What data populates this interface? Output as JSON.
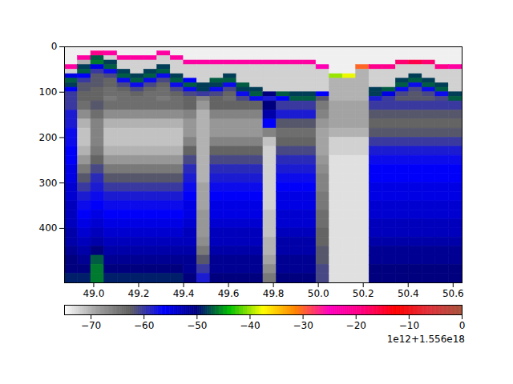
{
  "chart_data": {
    "type": "heatmap",
    "xlim": [
      48.87,
      50.64
    ],
    "ylim": [
      520,
      0
    ],
    "xticks": [
      {
        "value": 49.0,
        "label": "49.0"
      },
      {
        "value": 49.2,
        "label": "49.2"
      },
      {
        "value": 49.4,
        "label": "49.4"
      },
      {
        "value": 49.6,
        "label": "49.6"
      },
      {
        "value": 49.8,
        "label": "49.8"
      },
      {
        "value": 50.0,
        "label": "50.0"
      },
      {
        "value": 50.2,
        "label": "50.2"
      },
      {
        "value": 50.4,
        "label": "50.4"
      },
      {
        "value": 50.6,
        "label": "50.6"
      }
    ],
    "yticks": [
      0,
      100,
      200,
      300,
      400
    ],
    "offset_text": "1e12+1.556e18",
    "colorbar": {
      "range": [
        -75,
        0
      ],
      "ticks": [
        {
          "value": -70,
          "label": "−70"
        },
        {
          "value": -60,
          "label": "−60"
        },
        {
          "value": -50,
          "label": "−50"
        },
        {
          "value": -40,
          "label": "−40"
        },
        {
          "value": -30,
          "label": "−30"
        },
        {
          "value": -20,
          "label": "−20"
        },
        {
          "value": -10,
          "label": "−10"
        },
        0
      ]
    },
    "x_bins": [
      48.87,
      48.929,
      48.988,
      49.047,
      49.106,
      49.165,
      49.224,
      49.283,
      49.342,
      49.401,
      49.46,
      49.519,
      49.578,
      49.637,
      49.696,
      49.755,
      49.814,
      49.873,
      49.932,
      49.991,
      50.05,
      50.109,
      50.168,
      50.227,
      50.286,
      50.345,
      50.404,
      50.463,
      50.522,
      50.581,
      50.64
    ],
    "y_bins": [
      0,
      10,
      20,
      30,
      40,
      50,
      60,
      70,
      80,
      90,
      100,
      110,
      120,
      140,
      160,
      180,
      200,
      220,
      240,
      260,
      280,
      300,
      320,
      340,
      360,
      380,
      400,
      420,
      440,
      460,
      480,
      500,
      520
    ],
    "values": [
      [
        -74,
        -74,
        -74,
        -74,
        -22,
        -72,
        -55,
        -47,
        -48,
        -56,
        -60,
        -60,
        -60,
        -58,
        -58,
        -57,
        -57,
        -56,
        -56,
        -55,
        -55,
        -54,
        -54,
        -53,
        -53,
        -53,
        -52,
        -52,
        -51,
        -50,
        -50,
        -49
      ],
      [
        -74,
        -74,
        -22,
        -70,
        -48,
        -47,
        -56,
        -60,
        -62,
        -62,
        -63,
        -63,
        -64,
        -67,
        -70,
        -71,
        -71,
        -70,
        -68,
        -65,
        -62,
        -60,
        -58,
        -57,
        -56,
        -55,
        -54,
        -53,
        -52,
        -51,
        -50,
        -49
      ],
      [
        -74,
        -20,
        -47,
        -46,
        -55,
        -60,
        -62,
        -62,
        -62,
        -63,
        -63,
        -63,
        -62,
        -64,
        -66,
        -66,
        -66,
        -65,
        -63,
        -61,
        -59,
        -58,
        -57,
        -56,
        -55,
        -54,
        -53,
        -52,
        -50,
        -47,
        -46,
        -46
      ],
      [
        -74,
        -22,
        -72,
        -48,
        -47,
        -57,
        -61,
        -63,
        -63,
        -64,
        -64,
        -65,
        -64,
        -67,
        -70,
        -71,
        -71,
        -70,
        -68,
        -65,
        -62,
        -60,
        -58,
        -57,
        -56,
        -55,
        -54,
        -53,
        -52,
        -51,
        -50,
        -49
      ],
      [
        -74,
        -74,
        -22,
        -72,
        -72,
        -48,
        -47,
        -57,
        -61,
        -63,
        -64,
        -64,
        -64,
        -67,
        -70,
        -71,
        -71,
        -70,
        -68,
        -65,
        -62,
        -60,
        -58,
        -57,
        -56,
        -55,
        -54,
        -53,
        -52,
        -51,
        -50,
        -49
      ],
      [
        -74,
        -74,
        -22,
        -72,
        -72,
        -72,
        -48,
        -47,
        -57,
        -61,
        -63,
        -64,
        -64,
        -67,
        -70,
        -71,
        -71,
        -70,
        -68,
        -65,
        -62,
        -60,
        -58,
        -57,
        -56,
        -55,
        -54,
        -53,
        -52,
        -51,
        -50,
        -49
      ],
      [
        -74,
        -74,
        -22,
        -72,
        -72,
        -48,
        -47,
        -57,
        -61,
        -63,
        -64,
        -64,
        -64,
        -67,
        -70,
        -71,
        -71,
        -70,
        -68,
        -65,
        -62,
        -60,
        -58,
        -57,
        -56,
        -55,
        -54,
        -53,
        -52,
        -51,
        -50,
        -49
      ],
      [
        -74,
        -22,
        -72,
        -72,
        -48,
        -47,
        -57,
        -61,
        -63,
        -64,
        -64,
        -65,
        -64,
        -67,
        -70,
        -71,
        -71,
        -70,
        -68,
        -65,
        -62,
        -60,
        -58,
        -57,
        -56,
        -55,
        -54,
        -53,
        -52,
        -51,
        -50,
        -49
      ],
      [
        -74,
        -74,
        -22,
        -72,
        -72,
        -72,
        -48,
        -47,
        -57,
        -61,
        -63,
        -64,
        -64,
        -67,
        -70,
        -71,
        -71,
        -70,
        -68,
        -65,
        -62,
        -60,
        -58,
        -57,
        -56,
        -55,
        -54,
        -53,
        -52,
        -51,
        -50,
        -49
      ],
      [
        -74,
        -74,
        -74,
        -22,
        -72,
        -72,
        -72,
        -56,
        -47,
        -57,
        -61,
        -63,
        -63,
        -66,
        -68,
        -68,
        -66,
        -63,
        -61,
        -59,
        -58,
        -57,
        -56,
        -55,
        -55,
        -54,
        -53,
        -53,
        -52,
        -51,
        -51,
        -50
      ],
      [
        -74,
        -74,
        -74,
        -22,
        -72,
        -72,
        -72,
        -72,
        -48,
        -48,
        -60,
        -66,
        -68,
        -70,
        -70,
        -70,
        -70,
        -70,
        -70,
        -70,
        -70,
        -69,
        -69,
        -69,
        -68,
        -68,
        -68,
        -67,
        -65,
        -62,
        -60,
        -58
      ],
      [
        -74,
        -74,
        -74,
        -22,
        -72,
        -72,
        -72,
        -47,
        -48,
        -57,
        -61,
        -63,
        -63,
        -66,
        -68,
        -68,
        -66,
        -63,
        -61,
        -59,
        -58,
        -57,
        -56,
        -55,
        -55,
        -54,
        -53,
        -53,
        -52,
        -51,
        -51,
        -50
      ],
      [
        -74,
        -74,
        -74,
        -22,
        -72,
        -72,
        -48,
        -47,
        -57,
        -61,
        -63,
        -64,
        -63,
        -66,
        -68,
        -68,
        -66,
        -63,
        -61,
        -59,
        -58,
        -57,
        -56,
        -55,
        -55,
        -54,
        -53,
        -53,
        -52,
        -51,
        -51,
        -50
      ],
      [
        -74,
        -74,
        -74,
        -22,
        -72,
        -72,
        -72,
        -72,
        -47,
        -48,
        -57,
        -61,
        -63,
        -66,
        -68,
        -68,
        -66,
        -63,
        -61,
        -59,
        -58,
        -57,
        -56,
        -55,
        -55,
        -54,
        -53,
        -53,
        -52,
        -51,
        -51,
        -50
      ],
      [
        -74,
        -74,
        -74,
        -22,
        -72,
        -72,
        -72,
        -72,
        -72,
        -48,
        -47,
        -57,
        -63,
        -66,
        -68,
        -68,
        -66,
        -63,
        -61,
        -59,
        -58,
        -57,
        -56,
        -55,
        -55,
        -54,
        -53,
        -53,
        -52,
        -51,
        -51,
        -50
      ],
      [
        -74,
        -74,
        -74,
        -22,
        -72,
        -72,
        -72,
        -72,
        -72,
        -72,
        -50,
        -58,
        -50,
        -52,
        -56,
        -66,
        -71,
        -72,
        -72,
        -72,
        -72,
        -72,
        -72,
        -72,
        -71,
        -71,
        -71,
        -70,
        -70,
        -69,
        -67,
        -65
      ],
      [
        -74,
        -74,
        -74,
        -22,
        -72,
        -72,
        -72,
        -72,
        -72,
        -72,
        -47,
        -56,
        -60,
        -58,
        -62,
        -64,
        -63,
        -61,
        -59,
        -58,
        -57,
        -56,
        -55,
        -55,
        -54,
        -54,
        -53,
        -52,
        -52,
        -51,
        -51,
        -50
      ],
      [
        -74,
        -74,
        -74,
        -22,
        -72,
        -72,
        -72,
        -72,
        -72,
        -72,
        -48,
        -47,
        -60,
        -58,
        -62,
        -64,
        -63,
        -61,
        -59,
        -58,
        -57,
        -56,
        -55,
        -55,
        -54,
        -54,
        -53,
        -52,
        -52,
        -51,
        -51,
        -50
      ],
      [
        -74,
        -74,
        -74,
        -22,
        -72,
        -72,
        -72,
        -72,
        -72,
        -72,
        -48,
        -47,
        -60,
        -58,
        -62,
        -64,
        -63,
        -61,
        -59,
        -58,
        -57,
        -56,
        -55,
        -55,
        -54,
        -54,
        -53,
        -52,
        -52,
        -51,
        -51,
        -50
      ],
      [
        -74,
        -74,
        -74,
        -74,
        -24,
        -72,
        -72,
        -72,
        -72,
        -72,
        -56,
        -62,
        -65,
        -66,
        -68,
        -69,
        -69,
        -69,
        -68,
        -67,
        -66,
        -66,
        -65,
        -65,
        -64,
        -64,
        -63,
        -63,
        -62,
        -62,
        -61,
        -61
      ],
      [
        -74,
        -74,
        -74,
        -74,
        -74,
        -74,
        -40,
        -70,
        -70,
        -70,
        -70,
        -70,
        -69,
        -69,
        -69,
        -70,
        -72,
        -72,
        -73,
        -73,
        -73,
        -73,
        -73,
        -73,
        -73,
        -73,
        -73,
        -73,
        -73,
        -73,
        -73,
        -73
      ],
      [
        -74,
        -74,
        -74,
        -74,
        -74,
        -74,
        -38,
        -70,
        -70,
        -70,
        -70,
        -70,
        -69,
        -69,
        -69,
        -70,
        -72,
        -72,
        -73,
        -73,
        -73,
        -73,
        -73,
        -73,
        -73,
        -73,
        -73,
        -73,
        -73,
        -73,
        -73,
        -73
      ],
      [
        -74,
        -74,
        -74,
        -74,
        -30,
        -70,
        -70,
        -70,
        -70,
        -70,
        -70,
        -70,
        -69,
        -69,
        -69,
        -70,
        -72,
        -72,
        -73,
        -73,
        -73,
        -73,
        -73,
        -73,
        -73,
        -73,
        -73,
        -73,
        -73,
        -73,
        -73,
        -73
      ],
      [
        -74,
        -74,
        -74,
        -74,
        -20,
        -72,
        -72,
        -72,
        -72,
        -48,
        -48,
        -58,
        -60,
        -62,
        -63,
        -62,
        -60,
        -58,
        -57,
        -56,
        -56,
        -55,
        -55,
        -54,
        -54,
        -53,
        -53,
        -52,
        -51,
        -51,
        -50,
        -50
      ],
      [
        -74,
        -74,
        -74,
        -74,
        -20,
        -72,
        -72,
        -72,
        -72,
        -47,
        -55,
        -60,
        -60,
        -62,
        -63,
        -62,
        -60,
        -58,
        -57,
        -56,
        -56,
        -55,
        -55,
        -54,
        -54,
        -53,
        -53,
        -52,
        -51,
        -51,
        -50,
        -50
      ],
      [
        -74,
        -74,
        -74,
        -18,
        -72,
        -72,
        -72,
        -48,
        -47,
        -57,
        -61,
        -62,
        -60,
        -62,
        -63,
        -62,
        -60,
        -58,
        -57,
        -56,
        -56,
        -55,
        -55,
        -54,
        -54,
        -53,
        -53,
        -52,
        -51,
        -51,
        -50,
        -50
      ],
      [
        -74,
        -74,
        -74,
        -16,
        -72,
        -72,
        -48,
        -47,
        -57,
        -61,
        -62,
        -62,
        -60,
        -62,
        -63,
        -62,
        -60,
        -58,
        -57,
        -56,
        -56,
        -55,
        -55,
        -54,
        -54,
        -53,
        -53,
        -52,
        -51,
        -51,
        -50,
        -50
      ],
      [
        -74,
        -74,
        -74,
        -18,
        -72,
        -72,
        -72,
        -48,
        -47,
        -57,
        -61,
        -62,
        -60,
        -62,
        -63,
        -62,
        -60,
        -58,
        -57,
        -56,
        -56,
        -55,
        -55,
        -54,
        -54,
        -53,
        -53,
        -52,
        -51,
        -51,
        -50,
        -50
      ],
      [
        -74,
        -74,
        -74,
        -74,
        -20,
        -72,
        -72,
        -72,
        -48,
        -47,
        -57,
        -61,
        -60,
        -62,
        -63,
        -62,
        -60,
        -58,
        -57,
        -56,
        -56,
        -55,
        -55,
        -54,
        -54,
        -53,
        -53,
        -52,
        -51,
        -51,
        -50,
        -50
      ],
      [
        -74,
        -74,
        -74,
        -74,
        -22,
        -72,
        -72,
        -72,
        -72,
        -72,
        -48,
        -47,
        -60,
        -62,
        -63,
        -62,
        -60,
        -58,
        -57,
        -56,
        -56,
        -55,
        -55,
        -54,
        -54,
        -53,
        -53,
        -52,
        -51,
        -51,
        -50,
        -50
      ]
    ]
  }
}
